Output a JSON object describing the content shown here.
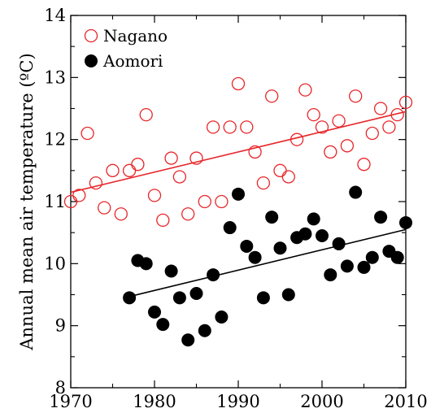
{
  "chart_data": {
    "type": "scatter",
    "title": "",
    "xlabel": "",
    "ylabel": "Annual mean air temperature (ºC)",
    "xlim": [
      1970,
      2010
    ],
    "ylim": [
      8,
      14
    ],
    "xticks": [
      "1970",
      "1980",
      "1990",
      "2000",
      "2010"
    ],
    "yticks": [
      "8",
      "9",
      "10",
      "11",
      "12",
      "13",
      "14"
    ],
    "grid": false,
    "legend": "top-left",
    "series": [
      {
        "name": "Nagano",
        "marker": "open-circle",
        "color": "#e8262a",
        "x": [
          1970,
          1971,
          1972,
          1973,
          1974,
          1975,
          1976,
          1977,
          1978,
          1979,
          1980,
          1981,
          1982,
          1983,
          1984,
          1985,
          1986,
          1987,
          1988,
          1989,
          1990,
          1991,
          1992,
          1993,
          1994,
          1995,
          1996,
          1997,
          1998,
          1999,
          2000,
          2001,
          2002,
          2003,
          2004,
          2005,
          2006,
          2007,
          2008,
          2009,
          2010
        ],
        "y": [
          11.0,
          11.1,
          12.1,
          11.3,
          10.9,
          11.5,
          10.8,
          11.5,
          11.6,
          12.4,
          11.1,
          10.7,
          11.7,
          11.4,
          10.8,
          11.7,
          11.0,
          12.2,
          11.0,
          12.2,
          12.9,
          12.2,
          11.8,
          11.3,
          12.7,
          11.5,
          11.4,
          12.0,
          12.8,
          12.4,
          12.2,
          11.8,
          12.3,
          11.9,
          12.7,
          11.6,
          12.1,
          12.5,
          12.2,
          12.4,
          12.6
        ],
        "trend": [
          [
            1970,
            11.15
          ],
          [
            2010,
            12.45
          ]
        ]
      },
      {
        "name": "Aomori",
        "marker": "filled-circle",
        "color": "#000000",
        "x": [
          1977,
          1978,
          1979,
          1980,
          1981,
          1982,
          1983,
          1984,
          1985,
          1986,
          1987,
          1988,
          1989,
          1990,
          1991,
          1992,
          1993,
          1994,
          1995,
          1996,
          1997,
          1998,
          1999,
          2000,
          2001,
          2002,
          2003,
          2004,
          2005,
          2006,
          2007,
          2008,
          2009,
          2010
        ],
        "y": [
          9.45,
          10.05,
          10.0,
          9.22,
          9.02,
          9.88,
          9.45,
          8.77,
          9.52,
          8.92,
          9.82,
          9.14,
          10.58,
          11.12,
          10.28,
          10.1,
          9.45,
          10.75,
          10.25,
          9.5,
          10.42,
          10.48,
          10.72,
          10.45,
          9.82,
          10.32,
          9.96,
          11.15,
          9.94,
          10.1,
          10.75,
          10.2,
          10.1,
          10.66
        ],
        "trend": [
          [
            1977,
            9.47
          ],
          [
            2010,
            10.55
          ]
        ]
      }
    ]
  }
}
